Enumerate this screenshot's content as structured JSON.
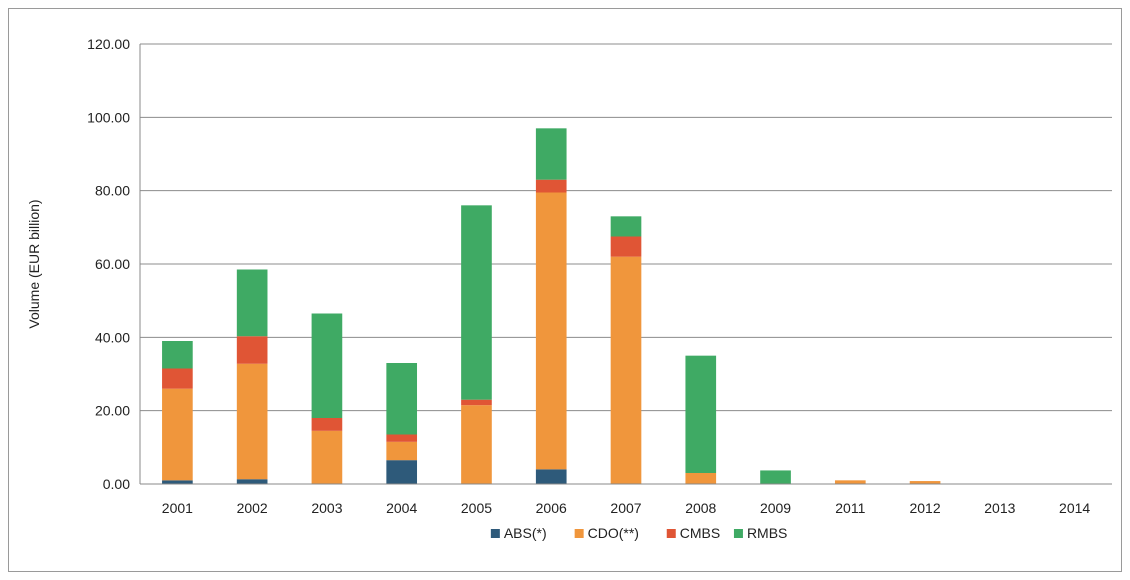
{
  "chart_data": {
    "type": "bar",
    "stacked": true,
    "title": "",
    "xlabel": "",
    "ylabel": "Volume (EUR billion)",
    "ylim": [
      0,
      120
    ],
    "yticks": [
      "0.00",
      "20.00",
      "40.00",
      "60.00",
      "80.00",
      "100.00",
      "120.00"
    ],
    "grid": true,
    "legend_position": "bottom",
    "categories": [
      "2001",
      "2002",
      "2003",
      "2004",
      "2005",
      "2006",
      "2007",
      "2008",
      "2009",
      "2011",
      "2012",
      "2013",
      "2014"
    ],
    "series": [
      {
        "name": "ABS(*)",
        "color": "#2e5a7a",
        "values": [
          1.0,
          1.3,
          0,
          6.5,
          0,
          4.0,
          0,
          0,
          0,
          0,
          0,
          0,
          0
        ]
      },
      {
        "name": "CDO(**)",
        "color": "#f0963c",
        "values": [
          25.0,
          31.5,
          14.5,
          5.0,
          21.5,
          75.5,
          62.0,
          3.0,
          0,
          1.0,
          0.8,
          0,
          0
        ]
      },
      {
        "name": "CMBS",
        "color": "#e05535",
        "values": [
          5.5,
          7.5,
          3.5,
          2.0,
          1.5,
          3.5,
          5.5,
          0,
          0,
          0,
          0,
          0,
          0
        ]
      },
      {
        "name": "RMBS",
        "color": "#3faa64",
        "values": [
          7.5,
          18.2,
          28.5,
          19.5,
          53.0,
          14.0,
          5.5,
          32.0,
          3.7,
          0,
          0,
          0,
          0
        ]
      }
    ]
  }
}
